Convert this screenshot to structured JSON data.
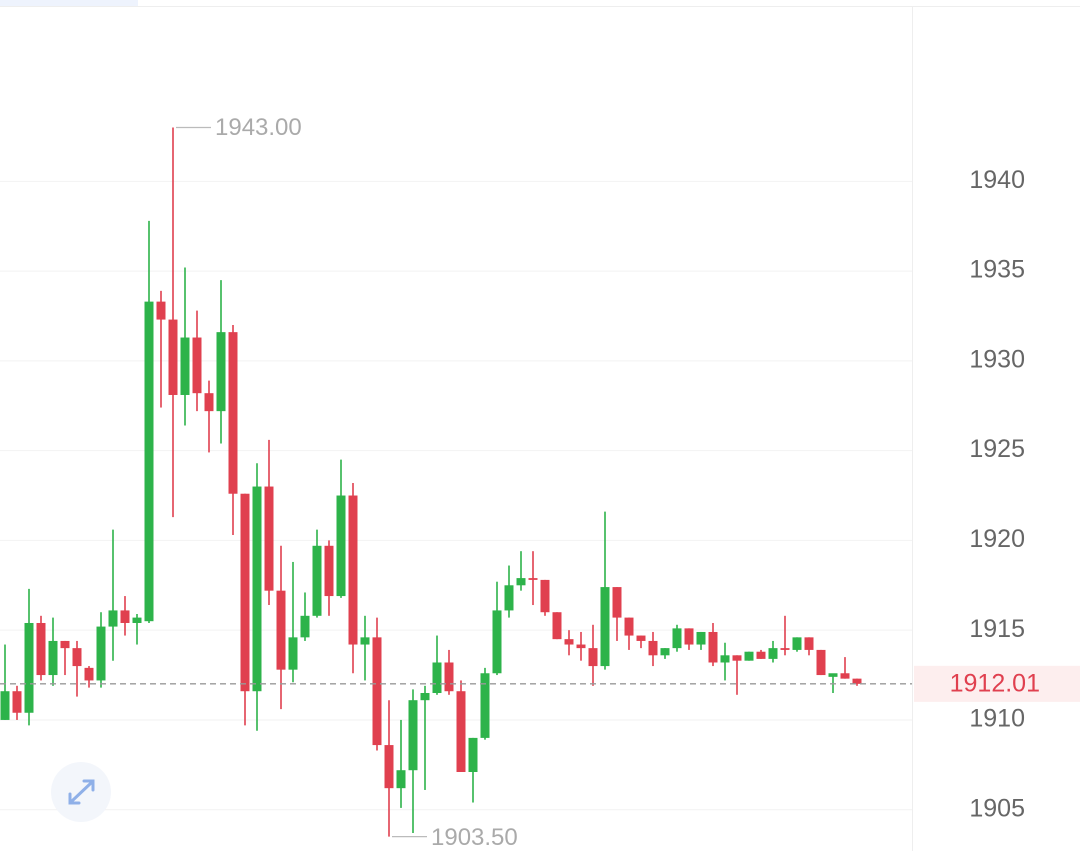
{
  "chart_data": {
    "type": "candlestick",
    "ylim": [
      1902.7,
      1950.1
    ],
    "yticks": [
      1905,
      1910,
      1915,
      1920,
      1925,
      1930,
      1935,
      1940
    ],
    "grid": true,
    "up_color": "#2db34a",
    "down_color": "#e0404f",
    "open": [
      1910.0,
      1911.6,
      1910.4,
      1915.4,
      1912.5,
      1914.4,
      1914.0,
      1912.9,
      1912.2,
      1915.2,
      1916.1,
      1915.4,
      1915.5,
      1933.3,
      1932.3,
      1928.1,
      1931.3,
      1928.2,
      1927.2,
      1931.6,
      1922.6,
      1911.6,
      1923.0,
      1917.2,
      1912.8,
      1914.6,
      1915.8,
      1919.7,
      1916.9,
      1922.5,
      1914.2,
      1914.6,
      1908.6,
      1906.2,
      1907.2,
      1911.1,
      1911.5,
      1913.2,
      1911.6,
      1907.1,
      1909.0,
      1912.6,
      1916.1,
      1917.5,
      1917.9,
      1917.8,
      1916.0,
      1914.5,
      1914.2,
      1914.0,
      1913.0,
      1917.4,
      1915.7,
      1914.7,
      1914.4,
      1913.6,
      1914.0,
      1915.1,
      1914.2,
      1914.9,
      1913.2,
      1913.6,
      1913.3,
      1913.8,
      1913.4,
      1914.0,
      1913.9,
      1914.6,
      1913.9,
      1912.4,
      1912.6,
      1912.3
    ],
    "high": [
      1914.2,
      1911.9,
      1917.3,
      1915.8,
      1915.7,
      1914.4,
      1914.4,
      1913.0,
      1916.0,
      1920.6,
      1916.9,
      1915.9,
      1937.8,
      1933.9,
      1943.0,
      1935.2,
      1932.8,
      1928.9,
      1934.5,
      1932.0,
      1922.6,
      1924.3,
      1925.6,
      1919.7,
      1918.8,
      1917.1,
      1920.6,
      1920.0,
      1924.5,
      1923.2,
      1915.8,
      1915.7,
      1911.1,
      1910.0,
      1911.7,
      1911.9,
      1914.7,
      1913.9,
      1912.2,
      1909.0,
      1912.9,
      1917.7,
      1918.6,
      1919.4,
      1919.4,
      1917.8,
      1916.0,
      1915.0,
      1914.9,
      1915.3,
      1921.6,
      1917.4,
      1915.7,
      1914.7,
      1914.9,
      1914.0,
      1915.3,
      1915.1,
      1914.9,
      1915.4,
      1914.3,
      1913.6,
      1913.8,
      1913.9,
      1914.4,
      1915.8,
      1914.6,
      1914.6,
      1913.9,
      1912.5,
      1913.5,
      1912.3
    ],
    "low": [
      1910.0,
      1910.0,
      1909.7,
      1912.2,
      1911.9,
      1912.5,
      1911.3,
      1911.8,
      1911.8,
      1913.3,
      1914.7,
      1914.2,
      1915.4,
      1927.4,
      1921.3,
      1926.4,
      1927.2,
      1924.9,
      1925.4,
      1920.3,
      1909.7,
      1909.4,
      1916.4,
      1910.6,
      1912.1,
      1914.4,
      1915.7,
      1915.8,
      1916.8,
      1912.6,
      1912.2,
      1908.3,
      1903.5,
      1905.1,
      1903.7,
      1906.1,
      1911.4,
      1911.4,
      1907.1,
      1905.4,
      1908.9,
      1912.5,
      1915.7,
      1917.2,
      1916.4,
      1915.8,
      1914.5,
      1913.6,
      1913.3,
      1911.9,
      1912.8,
      1914.4,
      1913.9,
      1914.0,
      1913.0,
      1913.4,
      1913.8,
      1913.9,
      1913.9,
      1913.0,
      1912.2,
      1911.4,
      1913.3,
      1913.4,
      1913.2,
      1913.6,
      1913.8,
      1913.6,
      1912.5,
      1911.5,
      1912.3,
      1911.9
    ],
    "close": [
      1911.6,
      1910.4,
      1915.4,
      1912.5,
      1914.4,
      1914.0,
      1913.0,
      1912.2,
      1915.2,
      1916.1,
      1915.4,
      1915.7,
      1933.3,
      1932.3,
      1928.1,
      1931.3,
      1928.2,
      1927.2,
      1931.6,
      1922.6,
      1911.6,
      1923.0,
      1917.2,
      1912.8,
      1914.6,
      1915.8,
      1919.7,
      1916.9,
      1922.5,
      1914.2,
      1914.6,
      1908.6,
      1906.2,
      1907.2,
      1911.1,
      1911.5,
      1913.2,
      1911.6,
      1907.1,
      1909.0,
      1912.6,
      1916.1,
      1917.5,
      1917.9,
      1917.8,
      1916.0,
      1914.5,
      1914.2,
      1914.0,
      1913.0,
      1917.4,
      1915.7,
      1914.7,
      1914.4,
      1913.6,
      1914.0,
      1915.1,
      1914.2,
      1914.9,
      1913.2,
      1913.6,
      1913.3,
      1913.8,
      1913.4,
      1914.0,
      1913.9,
      1914.6,
      1913.9,
      1912.5,
      1912.6,
      1912.3,
      1912.01
    ],
    "high_label": {
      "value": 1943.0,
      "label": "1943.00"
    },
    "low_label": {
      "value": 1903.5,
      "label": "1903.50"
    },
    "last_price": {
      "value": 1912.01,
      "label": "1912.01"
    }
  }
}
